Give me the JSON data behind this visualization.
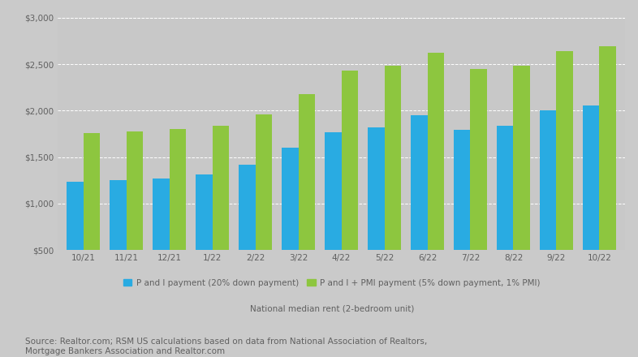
{
  "categories": [
    "10/21",
    "11/21",
    "12/21",
    "1/22",
    "2/22",
    "3/22",
    "4/22",
    "5/22",
    "6/22",
    "7/22",
    "8/22",
    "9/22",
    "10/22"
  ],
  "pi_20down": [
    1230,
    1255,
    1270,
    1310,
    1420,
    1600,
    1770,
    1820,
    1950,
    1790,
    1840,
    2000,
    2060
  ],
  "pi_pmi_5down": [
    1760,
    1775,
    1800,
    1840,
    1960,
    2180,
    2430,
    2480,
    2620,
    2450,
    2480,
    2640,
    2690
  ],
  "bar_color_blue": "#29ABE2",
  "bar_color_green": "#8DC63F",
  "chart_bg": "#C8C8C8",
  "fig_bg": "#CACACA",
  "grid_color": "#FFFFFF",
  "text_color": "#606060",
  "ylim_min": 500,
  "ylim_max": 3000,
  "yticks": [
    500,
    1000,
    1500,
    2000,
    2500,
    3000
  ],
  "ytick_labels": [
    "$500",
    "$1,000",
    "$1,500",
    "$2,000",
    "$2,500",
    "$3,000"
  ],
  "legend_label_blue": "P and I payment (20% down payment)",
  "legend_label_green": "P and I + PMI payment (5% down payment, 1% PMI)",
  "legend_label_line": "National median rent (2-bedroom unit)",
  "source_text": "Source: Realtor.com; RSM US calculations based on data from National Association of Realtors,\nMortgage Bankers Association and Realtor.com",
  "tick_fontsize": 7.5,
  "legend_fontsize": 7.5,
  "source_fontsize": 7.5
}
